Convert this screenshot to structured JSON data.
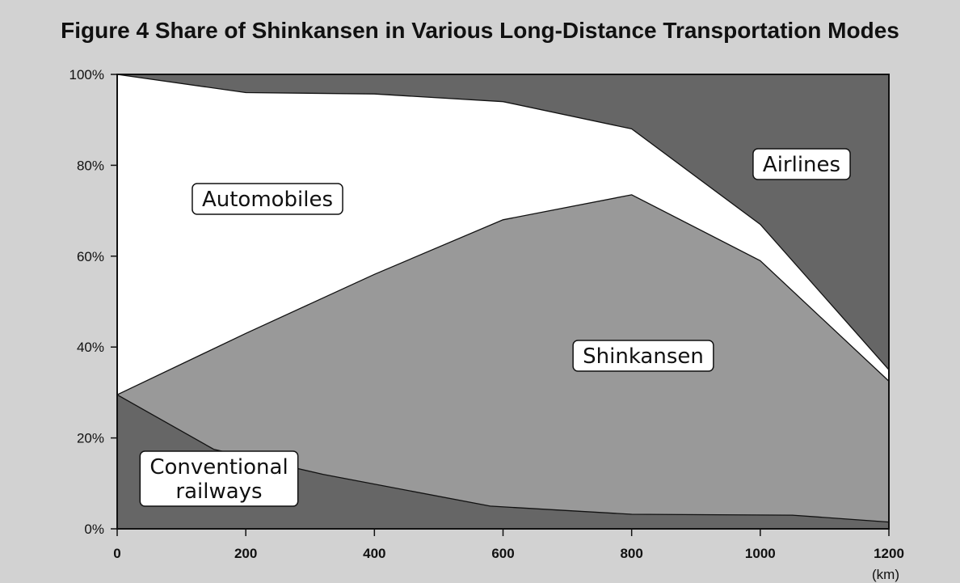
{
  "chart_data": {
    "type": "area",
    "stacked": true,
    "title": "Figure 4  Share of Shinkansen in Various Long-Distance Transportation Modes",
    "x_unit": "(km)",
    "xlim": [
      0,
      1200
    ],
    "ylim": [
      0,
      100
    ],
    "x_ticks": [
      "0",
      "200",
      "400",
      "600",
      "800",
      "1000",
      "1200"
    ],
    "y_ticks": [
      "0%",
      "20%",
      "40%",
      "60%",
      "80%",
      "100%"
    ],
    "grid": false,
    "legend": "inline labels",
    "series": [
      {
        "name": "Conventional railways",
        "label_lines": [
          "Conventional",
          "railways"
        ],
        "color": "#666666",
        "points": [
          [
            0,
            29.5
          ],
          [
            150,
            17.5
          ],
          [
            320,
            12
          ],
          [
            580,
            5
          ],
          [
            800,
            3.2
          ],
          [
            1050,
            3
          ],
          [
            1200,
            1.5
          ]
        ]
      },
      {
        "name": "Shinkansen",
        "label_lines": [
          "Shinkansen"
        ],
        "color": "#999999",
        "points": [
          [
            0,
            29.5
          ],
          [
            200,
            43
          ],
          [
            400,
            56
          ],
          [
            600,
            68
          ],
          [
            800,
            73.5
          ],
          [
            1000,
            59
          ],
          [
            1200,
            32.5
          ]
        ]
      },
      {
        "name": "Automobiles",
        "label_lines": [
          "Automobiles"
        ],
        "color": "#ffffff",
        "points": [
          [
            0,
            100
          ],
          [
            200,
            96
          ],
          [
            400,
            95.7
          ],
          [
            600,
            94
          ],
          [
            800,
            88
          ],
          [
            1000,
            67
          ],
          [
            1200,
            35
          ]
        ]
      },
      {
        "name": "Airlines",
        "label_lines": [
          "Airlines"
        ],
        "color": "#666666",
        "points": [
          [
            0,
            100
          ],
          [
            1200,
            100
          ]
        ]
      }
    ]
  }
}
